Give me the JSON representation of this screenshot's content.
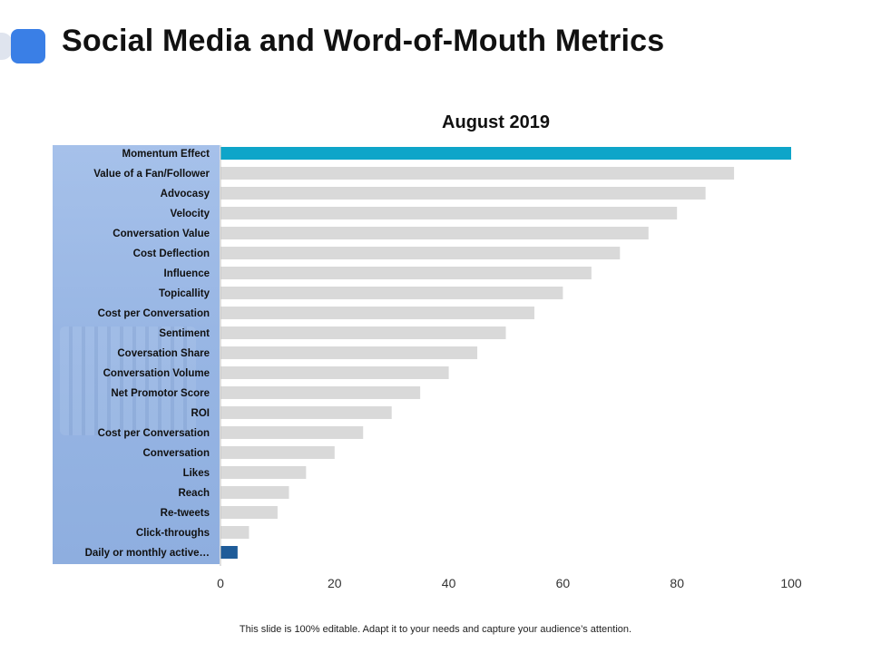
{
  "header": {
    "title": "Social Media and Word-of-Mouth Metrics"
  },
  "footer": {
    "note": "This slide is 100% editable. Adapt it to your needs and capture your audience’s attention."
  },
  "colors": {
    "accent": "#3a7fe6",
    "highlight_bar": "#0ea5c9",
    "last_bar": "#1f5c99",
    "default_bar": "#d9d9d9"
  },
  "chart_data": {
    "type": "bar",
    "orientation": "horizontal",
    "title": "August 2019",
    "xlabel": "",
    "ylabel": "",
    "xlim": [
      0,
      100
    ],
    "x_ticks": [
      0,
      20,
      40,
      60,
      80,
      100
    ],
    "grid": false,
    "legend": "none",
    "categories": [
      "Momentum Effect",
      "Value of a Fan/Follower",
      "Advocasy",
      "Velocity",
      "Conversation Value",
      "Cost Deflection",
      "Influence",
      "Topicallity",
      "Cost per Conversation",
      "Sentiment",
      "Coversation Share",
      "Conversation Volume",
      "Net Promotor Score",
      "ROI",
      "Cost per Conversation",
      "Conversation",
      "Likes",
      "Reach",
      "Re-tweets",
      "Click-throughs",
      "Daily or monthly active…"
    ],
    "values": [
      100,
      90,
      85,
      80,
      75,
      70,
      65,
      60,
      55,
      50,
      45,
      40,
      35,
      30,
      25,
      20,
      15,
      12,
      10,
      5,
      3
    ]
  }
}
